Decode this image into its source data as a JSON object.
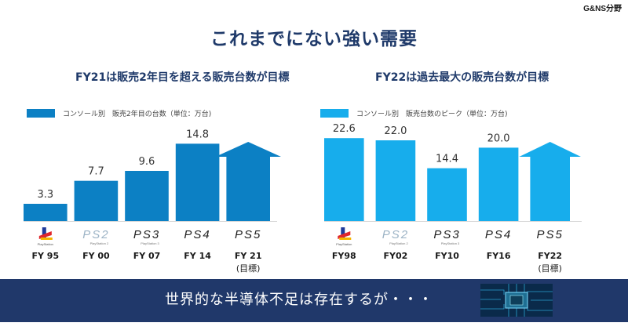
{
  "corner_label": "G&NS分野",
  "title": "これまでにない強い需要",
  "footer": "世界的な半導体不足は存在するが・・・",
  "chart_data": [
    {
      "type": "bar",
      "subtitle": "FY21は販売2年目を超える販売台数が目標",
      "legend": "コンソール別　販売2年目の台数（単位：万台)",
      "color": "#0c80c4",
      "categories": [
        "FY 95",
        "FY 00",
        "FY 07",
        "FY 14",
        "FY 21"
      ],
      "category_notes": [
        "",
        "",
        "",
        "",
        "(目標)"
      ],
      "consoles": [
        "PlayStation",
        "PS2",
        "PS3",
        "PS4",
        "PS5"
      ],
      "values": [
        3.3,
        7.7,
        9.6,
        14.8,
        null
      ],
      "value_labels": [
        "3.3",
        "7.7",
        "9.6",
        "14.8",
        ""
      ],
      "target": {
        "index": 4,
        "shape": "arrow"
      }
    },
    {
      "type": "bar",
      "subtitle": "FY22は過去最大の販売台数が目標",
      "legend": "コンソール別　販売台数のピーク（単位：万台)",
      "color": "#17adec",
      "categories": [
        "FY98",
        "FY02",
        "FY10",
        "FY16",
        "FY22"
      ],
      "category_notes": [
        "",
        "",
        "",
        "",
        "(目標)"
      ],
      "consoles": [
        "PlayStation",
        "PS2",
        "PS3",
        "PS4",
        "PS5"
      ],
      "values": [
        22.6,
        22.0,
        14.4,
        20.0,
        null
      ],
      "value_labels": [
        "22.6",
        "22.0",
        "14.4",
        "20.0",
        ""
      ],
      "target": {
        "index": 4,
        "shape": "arrow"
      }
    }
  ]
}
